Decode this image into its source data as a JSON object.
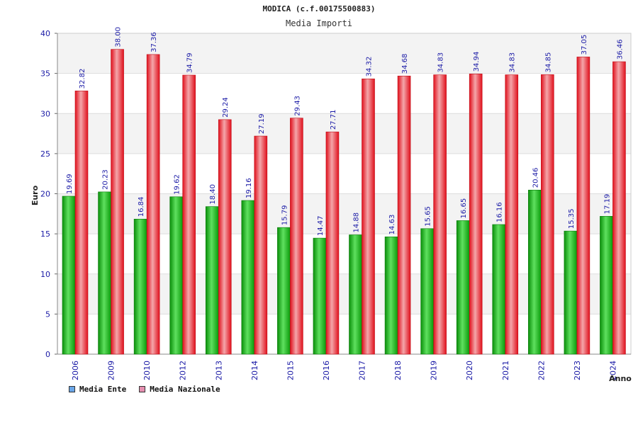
{
  "chart_data": {
    "type": "bar",
    "title": "MODICA (c.f.00175500883)",
    "subtitle": "Media Importi",
    "xlabel": "Anno",
    "ylabel": "Euro",
    "ylim": [
      0,
      40
    ],
    "yticks": [
      0,
      5,
      10,
      15,
      20,
      25,
      30,
      35,
      40
    ],
    "grid": true,
    "legend_position": "bottom-left",
    "categories": [
      "2006",
      "2009",
      "2010",
      "2012",
      "2013",
      "2014",
      "2015",
      "2016",
      "2017",
      "2018",
      "2019",
      "2020",
      "2021",
      "2022",
      "2023",
      "2024"
    ],
    "series": [
      {
        "name": "Media Ente",
        "color": "#11b011",
        "swatch_color": "#6aa6e8",
        "values": [
          19.69,
          20.23,
          16.84,
          19.62,
          18.4,
          19.16,
          15.79,
          14.47,
          14.88,
          14.63,
          15.65,
          16.65,
          16.16,
          20.46,
          15.35,
          17.19
        ],
        "labels": [
          "19.69",
          "20.23",
          "16.84",
          "19.62",
          "18.40",
          "19.16",
          "15.79",
          "14.47",
          "14.88",
          "14.63",
          "15.65",
          "16.65",
          "16.16",
          "20.46",
          "15.35",
          "17.19"
        ]
      },
      {
        "name": "Media Nazionale",
        "color": "#e8202a",
        "swatch_color": "#e58fb0",
        "values": [
          32.82,
          38.0,
          37.36,
          34.79,
          29.24,
          27.19,
          29.43,
          27.71,
          34.32,
          34.68,
          34.83,
          34.94,
          34.83,
          34.85,
          37.05,
          36.46
        ],
        "labels": [
          "32.82",
          "38.00",
          "37.36",
          "34.79",
          "29.24",
          "27.19",
          "29.43",
          "27.71",
          "34.32",
          "34.68",
          "34.83",
          "34.94",
          "34.83",
          "34.85",
          "37.05",
          "36.46"
        ]
      }
    ]
  }
}
